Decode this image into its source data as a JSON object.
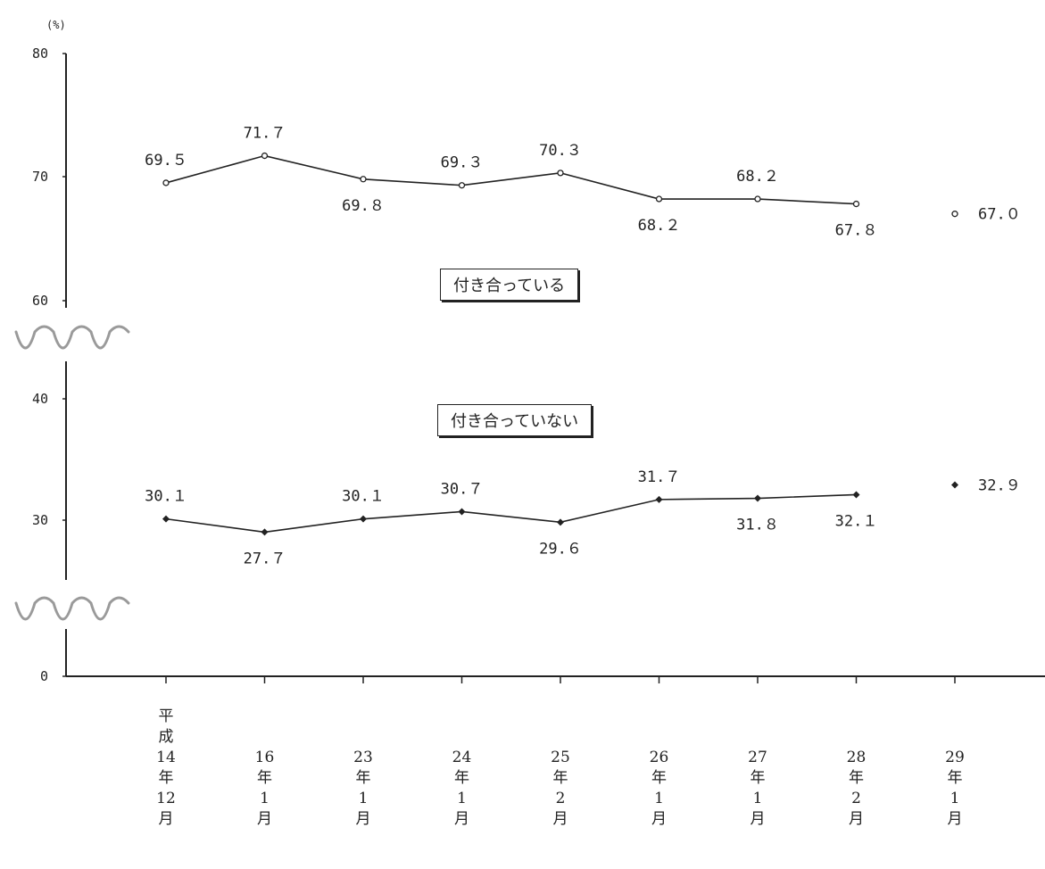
{
  "chart_data": {
    "type": "line",
    "y_unit": "(%)",
    "ylim": [
      0,
      80
    ],
    "y_axis_breaks": [
      [
        0,
        30
      ],
      [
        40,
        60
      ]
    ],
    "y_ticks": [
      "0",
      "30",
      "40",
      "60",
      "70",
      "80"
    ],
    "categories": [
      [
        "平",
        "成",
        "14",
        "年",
        "12",
        "月"
      ],
      [
        "16",
        "年",
        "1",
        "月"
      ],
      [
        "23",
        "年",
        "1",
        "月"
      ],
      [
        "24",
        "年",
        "1",
        "月"
      ],
      [
        "25",
        "年",
        "2",
        "月"
      ],
      [
        "26",
        "年",
        "1",
        "月"
      ],
      [
        "27",
        "年",
        "1",
        "月"
      ],
      [
        "28",
        "年",
        "2",
        "月"
      ],
      [
        "29",
        "年",
        "1",
        "月"
      ]
    ],
    "series": [
      {
        "name": "付き合っている",
        "marker": "open-circle",
        "values": [
          69.5,
          71.7,
          69.8,
          69.3,
          70.3,
          68.2,
          68.2,
          67.8,
          67.0
        ],
        "labels": [
          "69.５",
          "71.７",
          "69.８",
          "69.３",
          "70.３",
          "68.２",
          "68.２",
          "67.８",
          "67.０"
        ],
        "label_pos": [
          "above",
          "above",
          "below",
          "above",
          "above",
          "below",
          "above",
          "below",
          "right"
        ],
        "connect_last": false
      },
      {
        "name": "付き合っていない",
        "marker": "filled-diamond",
        "values": [
          30.1,
          27.7,
          30.1,
          30.7,
          29.6,
          31.7,
          31.8,
          32.1,
          32.9
        ],
        "labels": [
          "30.１",
          "27.７",
          "30.１",
          "30.７",
          "29.６",
          "31.７",
          "31.８",
          "32.１",
          "32.９"
        ],
        "label_pos": [
          "above",
          "below",
          "above",
          "above",
          "below",
          "above",
          "below",
          "below",
          "right"
        ],
        "connect_last": false
      }
    ],
    "colors": {
      "line": "#222222",
      "break_mark": "#9a9a9a"
    }
  }
}
